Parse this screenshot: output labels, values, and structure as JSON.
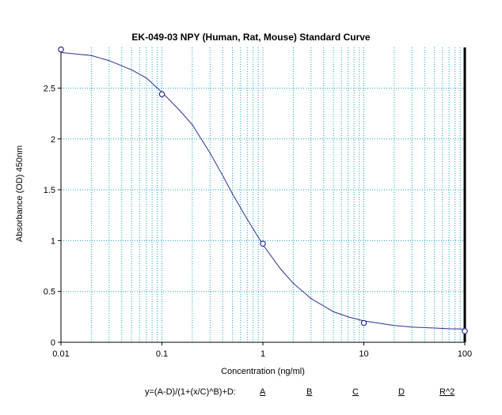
{
  "chart_data": {
    "type": "scatter",
    "title": "EK-049-03 NPY (Human, Rat, Mouse) Standard Curve",
    "xlabel": "Concentration (ng/ml)",
    "ylabel": "Absorbance (OD) 450nm",
    "xscale": "log",
    "xlim": [
      0.01,
      100
    ],
    "ylim": [
      0,
      2.9
    ],
    "x_ticks": [
      "0.01",
      "0.1",
      "1",
      "10",
      "100"
    ],
    "y_ticks": [
      "0",
      "0.5",
      "1",
      "1.5",
      "2",
      "2.5"
    ],
    "grid": true,
    "series": [
      {
        "kind": "points",
        "marker": "open-circle",
        "x": [
          0.01,
          0.1,
          1,
          10,
          100
        ],
        "y": [
          2.88,
          2.44,
          0.97,
          0.19,
          0.11
        ]
      },
      {
        "kind": "fitted-curve",
        "x": [
          0.01,
          0.02,
          0.03,
          0.05,
          0.07,
          0.1,
          0.15,
          0.2,
          0.3,
          0.4,
          0.5,
          0.7,
          1,
          1.5,
          2,
          3,
          5,
          7,
          10,
          20,
          30,
          50,
          70,
          100
        ],
        "y": [
          2.85,
          2.82,
          2.77,
          2.68,
          2.6,
          2.46,
          2.28,
          2.14,
          1.86,
          1.64,
          1.46,
          1.21,
          0.96,
          0.72,
          0.58,
          0.43,
          0.3,
          0.25,
          0.21,
          0.165,
          0.15,
          0.14,
          0.133,
          0.13
        ]
      }
    ],
    "colors": {
      "grid": "#1aa2c0",
      "curve": "#2b2f8f",
      "axis": "#000000"
    }
  },
  "equation": {
    "formula": "y=(A-D)/(1+(x/C)^B)+D:",
    "params": [
      "A",
      "B",
      "C",
      "D",
      "R^2"
    ]
  }
}
